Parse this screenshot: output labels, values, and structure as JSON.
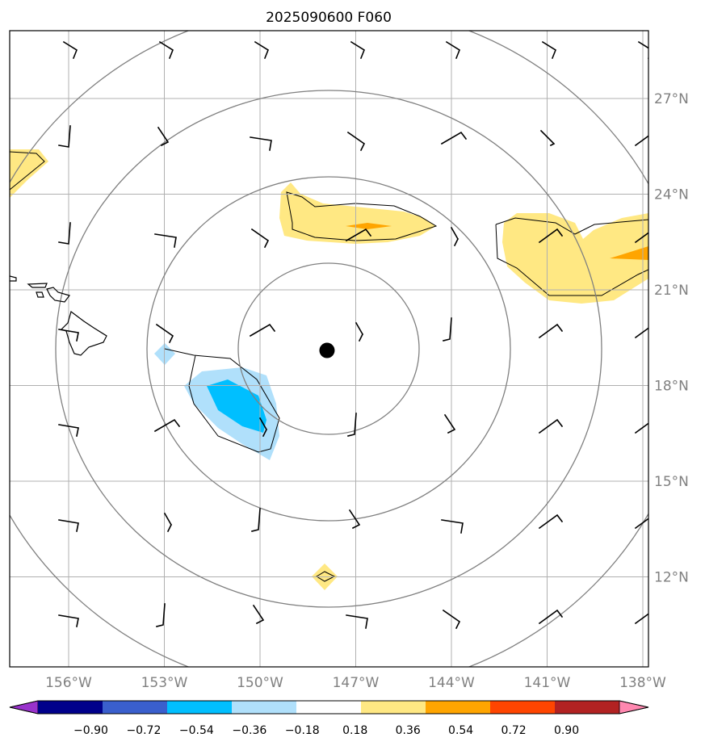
{
  "title": "2025090600 F060",
  "lon_labels": [
    "156°W",
    "153°W",
    "150°W",
    "147°W",
    "144°W",
    "141°W",
    "138°W"
  ],
  "lat_labels": [
    "27°N",
    "24°N",
    "21°N",
    "18°N",
    "15°N",
    "12°N"
  ],
  "lon_values": [
    -156,
    -153,
    -150,
    -147,
    -144,
    -141,
    -138
  ],
  "lat_values": [
    27,
    24,
    21,
    18,
    15,
    12
  ],
  "storm_center": {
    "lon": -147.9,
    "lat": 19.1
  },
  "colorbar": {
    "labels": [
      "−0.90",
      "−0.72",
      "−0.54",
      "−0.36",
      "−0.18",
      "0.18",
      "0.36",
      "0.54",
      "0.72",
      "0.90"
    ],
    "colors": [
      "#9932cc",
      "#00008b",
      "#3a5fcd",
      "#00bfff",
      "#b0e0fb",
      "#ffffff",
      "#ffe883",
      "#ffa500",
      "#ff4500",
      "#b22222",
      "#ff88b0"
    ]
  },
  "colors": {
    "grid": "#b0b0b0",
    "ring": "#808080",
    "coast": "#000000",
    "frame": "#000000"
  }
}
